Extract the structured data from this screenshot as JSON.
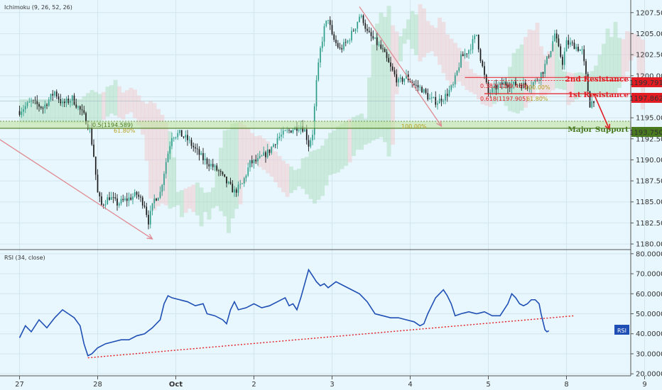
{
  "indicators": {
    "ichimoku_label": "Ichimoku (9, 26, 52, 26)",
    "rsi_label": "RSI (34, close)",
    "rsi_tag": "RSI"
  },
  "annotations": {
    "second_resistance": {
      "label": "2nd Resistance",
      "price": "1199.791",
      "level": 1199.791
    },
    "first_resistance": {
      "label": "1st Resistance",
      "price": "1197.862",
      "level": 1197.862
    },
    "major_support": {
      "label": "Major Support",
      "price": "1193.750",
      "level": 1193.75
    },
    "fib_382": "0.382(1199.439)",
    "fib_618": "0.618(1197.905)",
    "fib_05": "0.5(1194.589)",
    "pct_100_left": "100.00%",
    "pct_100_right": "100.00%",
    "pct_618_left": "61.80%",
    "pct_618_right": "61.80%"
  },
  "colors": {
    "background": "#e8f7fd",
    "candle_up": "#2e9e8a",
    "candle_down": "#1a1a1a",
    "resistance": "#e31b23",
    "support": "#4a7a1f",
    "rsi_line": "#1f4fb4",
    "trend_arrow": "#e08a93",
    "cloud_bull": "#a8d9b8",
    "cloud_bear": "#f2c3c7"
  },
  "chart_data": [
    {
      "type": "candlestick",
      "title": "",
      "y_ticks": [
        "1207.500",
        "1205.000",
        "1202.500",
        "1200.000",
        "1197.500",
        "1195.000",
        "1192.500",
        "1190.000",
        "1187.500",
        "1185.000",
        "1182.500",
        "1180.000"
      ],
      "ylim": [
        1179.5,
        1209.0
      ],
      "x_ticks": [
        "27",
        "28",
        "Oct",
        "2",
        "3",
        "4",
        "5",
        "8",
        "9"
      ],
      "x_tick_index": [
        0,
        40,
        80,
        120,
        160,
        200,
        240,
        280,
        320
      ],
      "close_path": [
        [
          0,
          1195.8
        ],
        [
          6,
          1196.9
        ],
        [
          12,
          1196.2
        ],
        [
          18,
          1198.1
        ],
        [
          22,
          1196.6
        ],
        [
          27,
          1197.3
        ],
        [
          33,
          1195.2
        ],
        [
          36,
          1193.6
        ],
        [
          38,
          1190.5
        ],
        [
          40,
          1186.0
        ],
        [
          42,
          1184.6
        ],
        [
          46,
          1185.6
        ],
        [
          50,
          1184.8
        ],
        [
          56,
          1185.4
        ],
        [
          60,
          1185.9
        ],
        [
          64,
          1184.7
        ],
        [
          66,
          1182.7
        ],
        [
          69,
          1185.3
        ],
        [
          72,
          1186.1
        ],
        [
          75,
          1189.8
        ],
        [
          78,
          1192.9
        ],
        [
          82,
          1193.1
        ],
        [
          86,
          1192.4
        ],
        [
          90,
          1191.2
        ],
        [
          94,
          1190.1
        ],
        [
          98,
          1189.4
        ],
        [
          102,
          1188.6
        ],
        [
          106,
          1187.3
        ],
        [
          110,
          1186.2
        ],
        [
          114,
          1187.1
        ],
        [
          118,
          1189.6
        ],
        [
          122,
          1189.9
        ],
        [
          128,
          1191.1
        ],
        [
          132,
          1192.6
        ],
        [
          136,
          1193.2
        ],
        [
          140,
          1193.7
        ],
        [
          144,
          1194.1
        ],
        [
          146,
          1193.5
        ],
        [
          148,
          1191.8
        ],
        [
          150,
          1193.2
        ],
        [
          152,
          1199.2
        ],
        [
          154,
          1203.1
        ],
        [
          156,
          1205.6
        ],
        [
          158,
          1206.9
        ],
        [
          160,
          1204.6
        ],
        [
          164,
          1203.1
        ],
        [
          168,
          1204.1
        ],
        [
          172,
          1205.9
        ],
        [
          174,
          1207.1
        ],
        [
          176,
          1206.6
        ],
        [
          178,
          1205.1
        ],
        [
          182,
          1204.1
        ],
        [
          186,
          1202.9
        ],
        [
          190,
          1200.9
        ],
        [
          194,
          1199.2
        ],
        [
          198,
          1199.9
        ],
        [
          202,
          1198.9
        ],
        [
          206,
          1198.4
        ],
        [
          210,
          1197.2
        ],
        [
          214,
          1196.9
        ],
        [
          218,
          1197.6
        ],
        [
          222,
          1198.8
        ],
        [
          226,
          1202.1
        ],
        [
          230,
          1203.1
        ],
        [
          234,
          1204.9
        ],
        [
          236,
          1202.1
        ],
        [
          238,
          1199.9
        ],
        [
          240,
          1197.9
        ],
        [
          244,
          1198.6
        ],
        [
          248,
          1199.1
        ],
        [
          252,
          1198.9
        ],
        [
          256,
          1199.0
        ],
        [
          260,
          1198.8
        ],
        [
          264,
          1199.3
        ],
        [
          268,
          1200.6
        ],
        [
          272,
          1203.2
        ],
        [
          274,
          1205.0
        ],
        [
          276,
          1203.1
        ],
        [
          278,
          1201.6
        ],
        [
          280,
          1203.9
        ],
        [
          284,
          1203.6
        ],
        [
          288,
          1202.9
        ],
        [
          290,
          1199.9
        ],
        [
          292,
          1196.6
        ],
        [
          294,
          1197.2
        ]
      ],
      "rsi": {
        "y_ticks": [
          "80.0000",
          "70.0000",
          "60.0000",
          "50.0000",
          "40.0000",
          "30.0000",
          "20.0000"
        ],
        "ylim": [
          19.0,
          81.0
        ],
        "path": [
          [
            0,
            38
          ],
          [
            3,
            44
          ],
          [
            6,
            41
          ],
          [
            10,
            47
          ],
          [
            14,
            43
          ],
          [
            18,
            48
          ],
          [
            22,
            52
          ],
          [
            25,
            50
          ],
          [
            28,
            48
          ],
          [
            31,
            44
          ],
          [
            33,
            35
          ],
          [
            35,
            29
          ],
          [
            37,
            30
          ],
          [
            40,
            33
          ],
          [
            44,
            35
          ],
          [
            48,
            36
          ],
          [
            52,
            37
          ],
          [
            56,
            37
          ],
          [
            60,
            39
          ],
          [
            64,
            40
          ],
          [
            68,
            43
          ],
          [
            72,
            47
          ],
          [
            74,
            55
          ],
          [
            76,
            59
          ],
          [
            78,
            58
          ],
          [
            82,
            57
          ],
          [
            86,
            56
          ],
          [
            90,
            54
          ],
          [
            94,
            55
          ],
          [
            96,
            50
          ],
          [
            100,
            49
          ],
          [
            104,
            47
          ],
          [
            106,
            45
          ],
          [
            108,
            52
          ],
          [
            110,
            56
          ],
          [
            112,
            52
          ],
          [
            116,
            53
          ],
          [
            120,
            55
          ],
          [
            124,
            53
          ],
          [
            128,
            54
          ],
          [
            132,
            56
          ],
          [
            136,
            58
          ],
          [
            138,
            54
          ],
          [
            140,
            55
          ],
          [
            142,
            52
          ],
          [
            144,
            58
          ],
          [
            146,
            65
          ],
          [
            148,
            72
          ],
          [
            150,
            69
          ],
          [
            152,
            66
          ],
          [
            154,
            64
          ],
          [
            156,
            65
          ],
          [
            158,
            63
          ],
          [
            162,
            66
          ],
          [
            166,
            64
          ],
          [
            170,
            62
          ],
          [
            174,
            60
          ],
          [
            176,
            58
          ],
          [
            178,
            56
          ],
          [
            180,
            53
          ],
          [
            182,
            50
          ],
          [
            186,
            49
          ],
          [
            190,
            48
          ],
          [
            194,
            48
          ],
          [
            198,
            47
          ],
          [
            202,
            46
          ],
          [
            205,
            44
          ],
          [
            207,
            45
          ],
          [
            209,
            50
          ],
          [
            211,
            54
          ],
          [
            213,
            58
          ],
          [
            215,
            60
          ],
          [
            217,
            62
          ],
          [
            219,
            59
          ],
          [
            221,
            55
          ],
          [
            223,
            49
          ],
          [
            226,
            50
          ],
          [
            230,
            51
          ],
          [
            234,
            50
          ],
          [
            238,
            51
          ],
          [
            242,
            49
          ],
          [
            246,
            49
          ],
          [
            250,
            55
          ],
          [
            252,
            60
          ],
          [
            254,
            58
          ],
          [
            256,
            55
          ],
          [
            258,
            54
          ],
          [
            260,
            55
          ],
          [
            262,
            57
          ],
          [
            264,
            57
          ],
          [
            266,
            55
          ],
          [
            267,
            50
          ],
          [
            268,
            46
          ],
          [
            269,
            42
          ],
          [
            270,
            41
          ],
          [
            271,
            41.5
          ]
        ]
      }
    }
  ]
}
